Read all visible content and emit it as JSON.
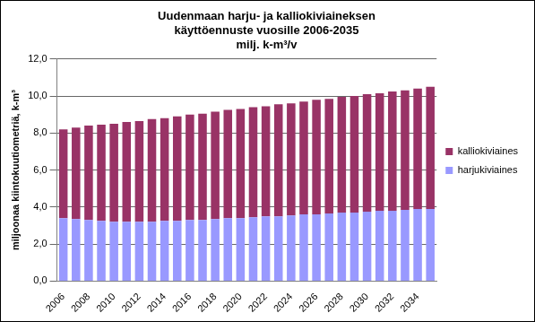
{
  "chart_data": {
    "type": "bar",
    "title": [
      "Uudenmaan harju- ja kalliokiviaineksen",
      "käyttöennuste vuosille 2006-2035"
    ],
    "subtitle": "milj. k-m³/v",
    "y_label": "miljoonaa kiintokuutiometriä, k-m³",
    "categories": [
      "2006",
      null,
      "2008",
      null,
      "2010",
      null,
      "2012",
      null,
      "2014",
      null,
      "2016",
      null,
      "2018",
      null,
      "2020",
      null,
      "2022",
      null,
      "2024",
      null,
      "2026",
      null,
      "2028",
      null,
      "2030",
      null,
      "2032",
      null,
      "2034",
      null
    ],
    "series": [
      {
        "name": "harjukiviaines",
        "color": "#9999ff",
        "values": [
          3.4,
          3.35,
          3.3,
          3.25,
          3.2,
          3.2,
          3.2,
          3.2,
          3.25,
          3.25,
          3.3,
          3.3,
          3.35,
          3.4,
          3.4,
          3.45,
          3.5,
          3.5,
          3.55,
          3.6,
          3.6,
          3.65,
          3.7,
          3.7,
          3.75,
          3.8,
          3.8,
          3.85,
          3.9,
          3.9
        ]
      },
      {
        "name": "kalliokiviaines",
        "color": "#993366",
        "values": [
          4.8,
          4.95,
          5.1,
          5.2,
          5.3,
          5.4,
          5.45,
          5.55,
          5.55,
          5.65,
          5.7,
          5.75,
          5.8,
          5.85,
          5.9,
          5.95,
          5.95,
          6.05,
          6.05,
          6.1,
          6.2,
          6.2,
          6.25,
          6.3,
          6.35,
          6.35,
          6.45,
          6.45,
          6.5,
          6.6
        ]
      }
    ],
    "stacked": true,
    "ylim": [
      0,
      12
    ],
    "yticks": [
      {
        "value": 0,
        "label": "0,0"
      },
      {
        "value": 2,
        "label": "2,0"
      },
      {
        "value": 4,
        "label": "4,0"
      },
      {
        "value": 6,
        "label": "6,0"
      },
      {
        "value": 8,
        "label": "8,0"
      },
      {
        "value": 10,
        "label": "10,0"
      },
      {
        "value": 12,
        "label": "12,0"
      }
    ],
    "grid": true,
    "legend": "right"
  }
}
